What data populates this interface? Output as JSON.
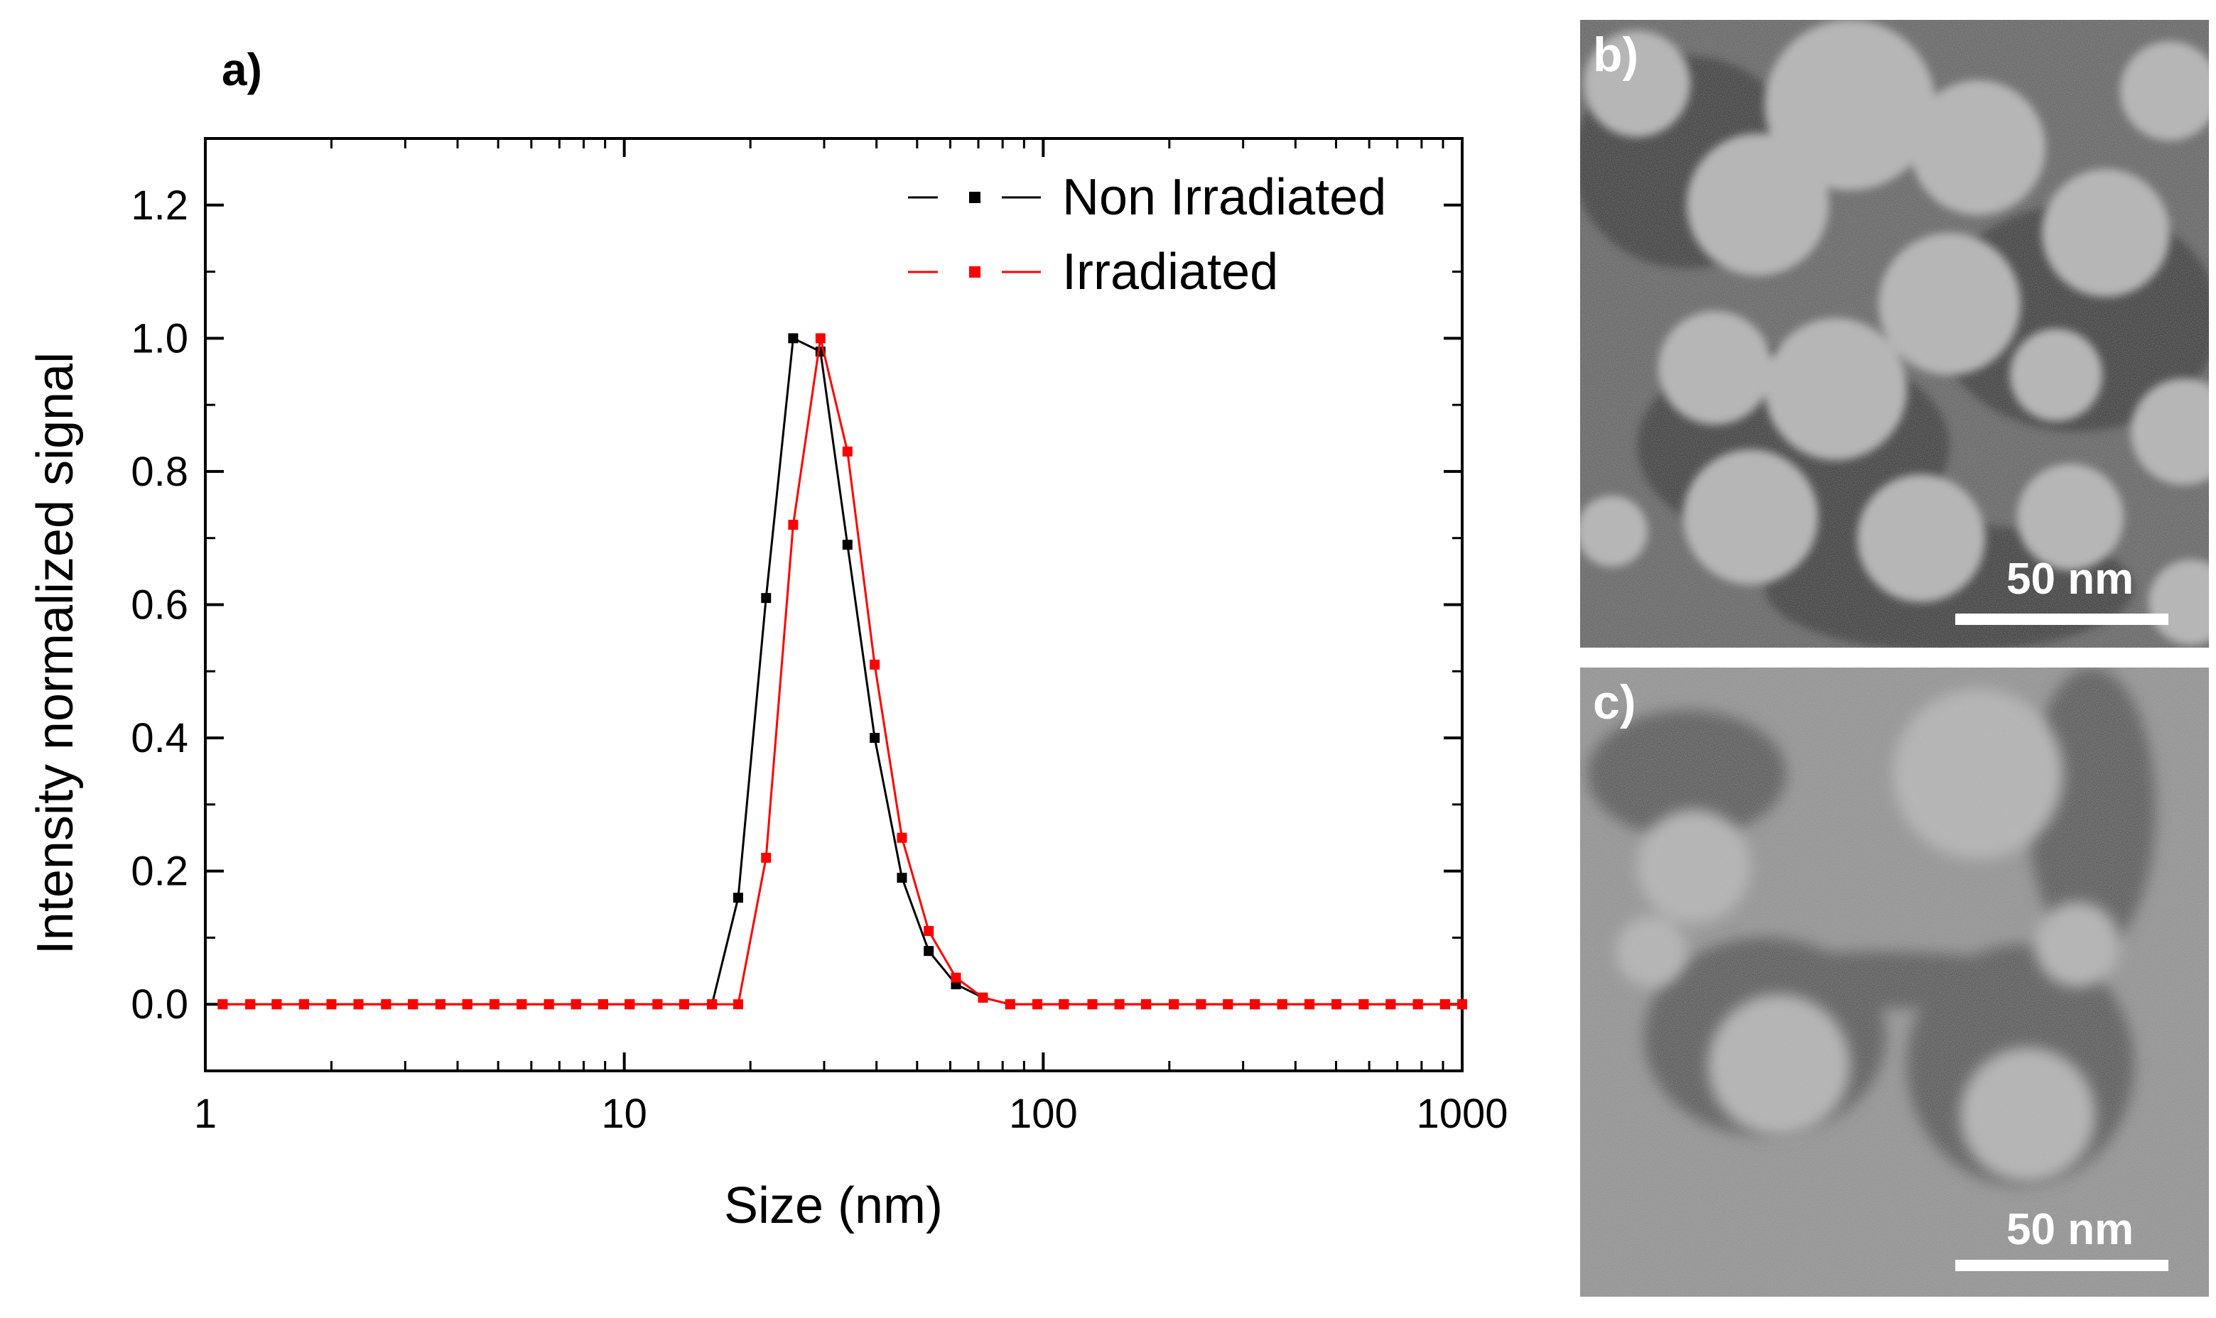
{
  "chart_data": {
    "type": "line",
    "panel_label": "a)",
    "xlabel": "Size (nm)",
    "ylabel": "Intensity normalized signal",
    "x_scale": "log",
    "xlim": [
      1,
      1000
    ],
    "ylim": [
      -0.1,
      1.3
    ],
    "x_ticks": [
      1,
      10,
      100,
      1000
    ],
    "x_tick_labels": [
      "1",
      "10",
      "100",
      "1000"
    ],
    "y_ticks": [
      0.0,
      0.2,
      0.4,
      0.6,
      0.8,
      1.0,
      1.2
    ],
    "y_tick_labels": [
      "0.0",
      "0.2",
      "0.4",
      "0.6",
      "0.8",
      "1.0",
      "1.2"
    ],
    "legend_position": "top-right",
    "grid": false,
    "series": [
      {
        "name": "Non Irradiated",
        "color": "#000000",
        "x": [
          1.1,
          1.28,
          1.48,
          1.72,
          2.0,
          2.32,
          2.7,
          3.13,
          3.64,
          4.22,
          4.9,
          5.69,
          6.61,
          7.67,
          8.9,
          10.3,
          12.0,
          13.9,
          16.2,
          18.7,
          21.8,
          25.3,
          29.4,
          34.1,
          39.6,
          46.0,
          53.3,
          61.9,
          71.8,
          83.4,
          96.8,
          112,
          131,
          152,
          176,
          205,
          238,
          276,
          320,
          372,
          432,
          501,
          582,
          675,
          784,
          910,
          1000
        ],
        "y": [
          0,
          0,
          0,
          0,
          0,
          0,
          0,
          0,
          0,
          0,
          0,
          0,
          0,
          0,
          0,
          0,
          0,
          0,
          0,
          0.16,
          0.61,
          1.0,
          0.98,
          0.69,
          0.4,
          0.19,
          0.08,
          0.03,
          0.01,
          0,
          0,
          0,
          0,
          0,
          0,
          0,
          0,
          0,
          0,
          0,
          0,
          0,
          0,
          0,
          0,
          0,
          0
        ]
      },
      {
        "name": "Irradiated",
        "color": "#ff0000",
        "x": [
          1.1,
          1.28,
          1.48,
          1.72,
          2.0,
          2.32,
          2.7,
          3.13,
          3.64,
          4.22,
          4.9,
          5.69,
          6.61,
          7.67,
          8.9,
          10.3,
          12.0,
          13.9,
          16.2,
          18.7,
          21.8,
          25.3,
          29.4,
          34.1,
          39.6,
          46.0,
          53.3,
          61.9,
          71.8,
          83.4,
          96.8,
          112,
          131,
          152,
          176,
          205,
          238,
          276,
          320,
          372,
          432,
          501,
          582,
          675,
          784,
          910,
          1000
        ],
        "y": [
          0,
          0,
          0,
          0,
          0,
          0,
          0,
          0,
          0,
          0,
          0,
          0,
          0,
          0,
          0,
          0,
          0,
          0,
          0,
          0,
          0.22,
          0.72,
          1.0,
          0.83,
          0.51,
          0.25,
          0.11,
          0.04,
          0.01,
          0,
          0,
          0,
          0,
          0,
          0,
          0,
          0,
          0,
          0,
          0,
          0,
          0,
          0,
          0,
          0,
          0,
          0
        ]
      }
    ]
  },
  "tem_images": [
    {
      "panel_label": "b)",
      "scale_label": "50 nm",
      "icon": "tem-micrograph-icon"
    },
    {
      "panel_label": "c)",
      "scale_label": "50 nm",
      "icon": "tem-micrograph-icon"
    }
  ]
}
